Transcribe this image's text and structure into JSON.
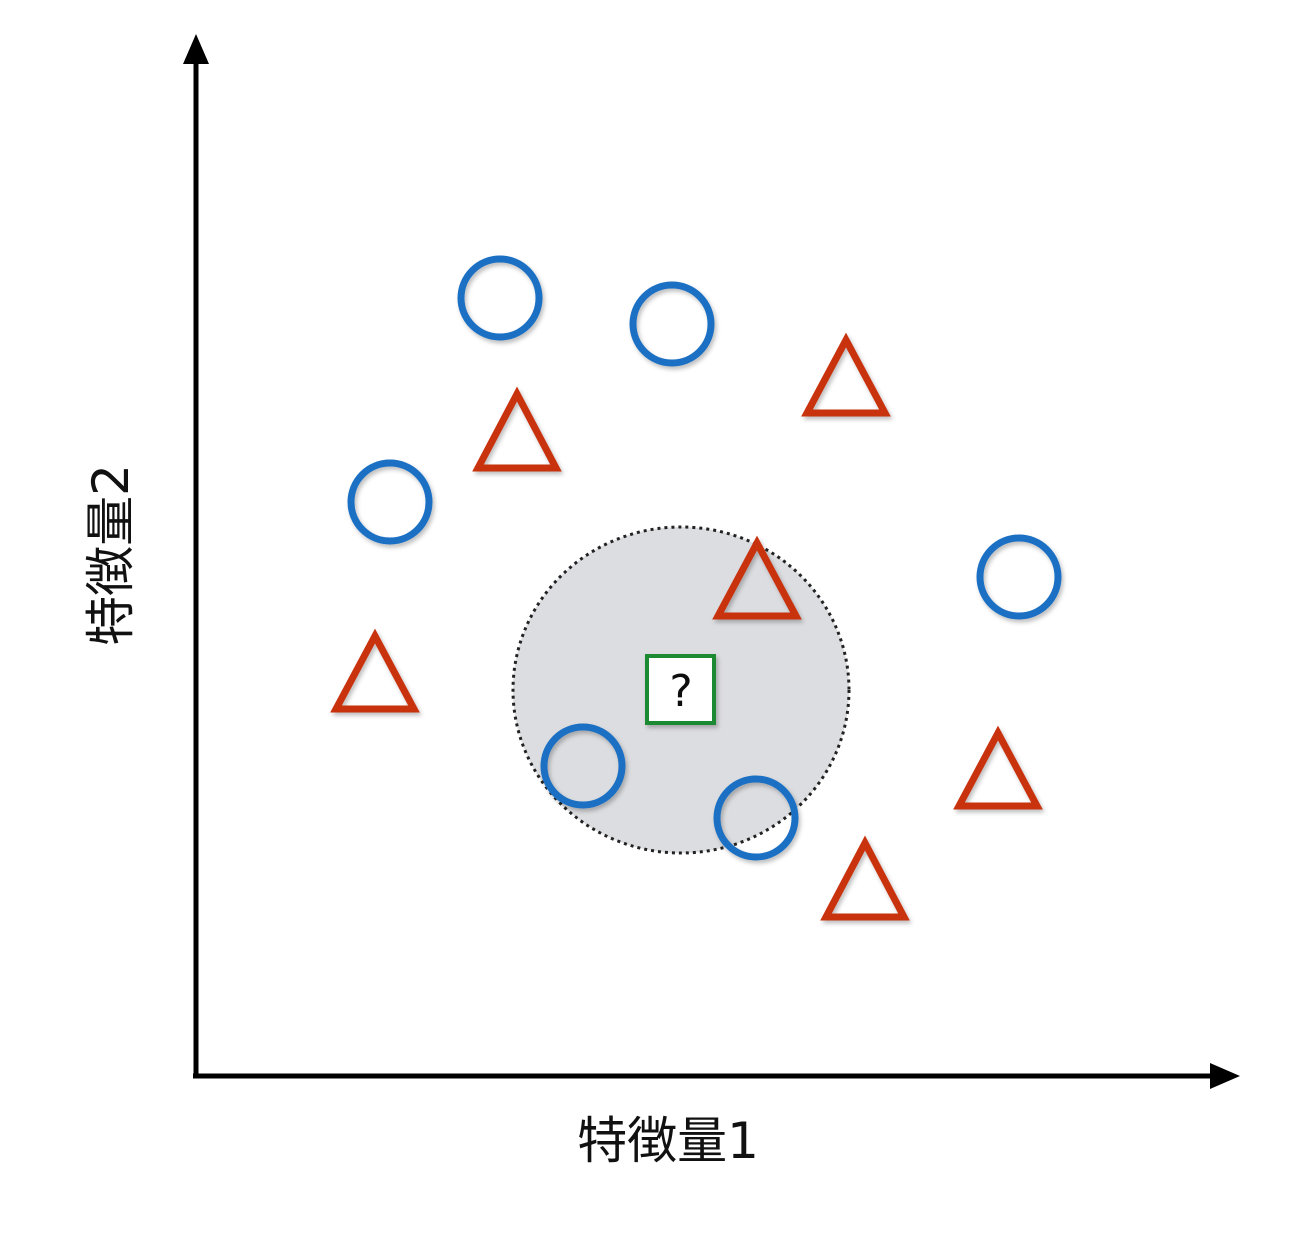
{
  "axes": {
    "x_label": "特徴量1",
    "y_label": "特徴量2"
  },
  "query": {
    "label": "?",
    "color": "#1e8a32"
  },
  "classes": {
    "circle": {
      "shape": "circle",
      "color": "#1a6fc4"
    },
    "triangle": {
      "shape": "triangle",
      "color": "#c8300e"
    }
  },
  "neighborhood": {
    "fill": "#dcdde0",
    "stroke": "#222222",
    "contains": [
      "circle",
      "circle",
      "triangle"
    ]
  }
}
